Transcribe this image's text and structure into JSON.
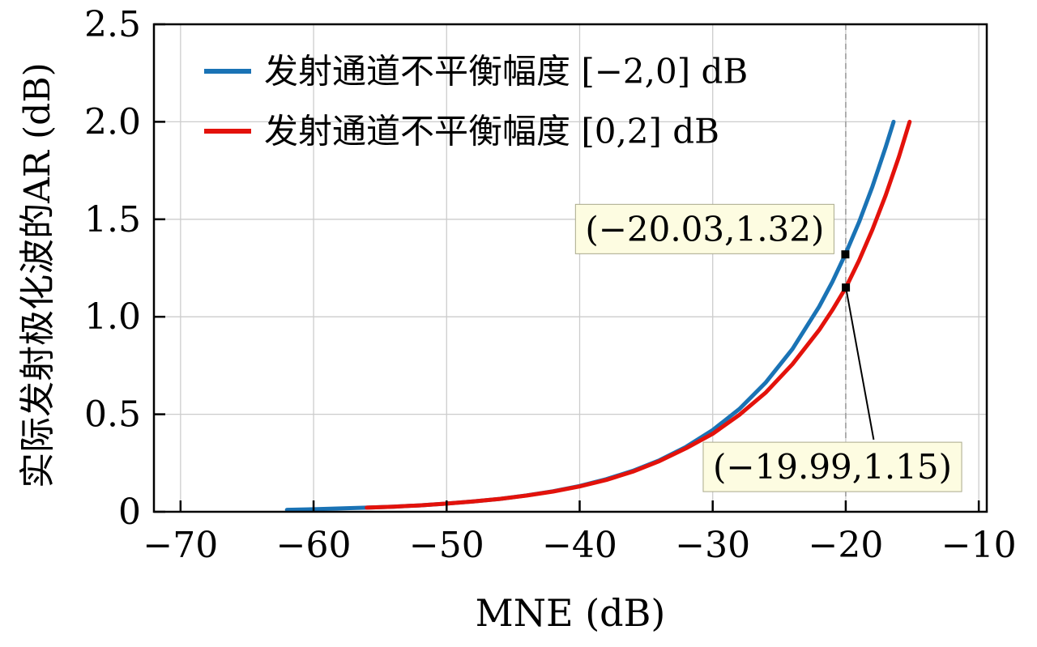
{
  "chart_data": {
    "type": "line",
    "title": "",
    "xlabel": "MNE (dB)",
    "ylabel": "实际发射极化波的AR (dB)",
    "xlim": [
      -72,
      -9.4
    ],
    "ylim": [
      0,
      2.5
    ],
    "xticks": [
      -70,
      -60,
      -50,
      -40,
      -30,
      -20,
      -10
    ],
    "xticklabels": [
      "−70",
      "−60",
      "−50",
      "−40",
      "−30",
      "−20",
      "−10"
    ],
    "yticks": [
      0,
      0.5,
      1,
      1.5,
      2,
      2.5
    ],
    "yticklabels": [
      "0",
      "0.5",
      "1.0",
      "1.5",
      "2.0",
      "2.5"
    ],
    "grid": true,
    "grid_color": "#cccccc",
    "axis_color": "#000000",
    "legend_position": "top-left",
    "series": [
      {
        "name": "发射通道不平衡幅度 [−2,0] dB",
        "color": "#1a73b5",
        "x": [
          -62,
          -60,
          -58,
          -56,
          -54,
          -52,
          -50,
          -48,
          -46,
          -44,
          -42,
          -40,
          -38,
          -36,
          -34,
          -32,
          -30,
          -28,
          -26,
          -24,
          -22,
          -21,
          -20.03,
          -19,
          -18,
          -17,
          -16.4
        ],
        "y": [
          0.01,
          0.013,
          0.017,
          0.021,
          0.026,
          0.033,
          0.042,
          0.053,
          0.066,
          0.084,
          0.105,
          0.132,
          0.167,
          0.21,
          0.264,
          0.333,
          0.419,
          0.527,
          0.664,
          0.835,
          1.052,
          1.18,
          1.32,
          1.486,
          1.667,
          1.87,
          2.0
        ]
      },
      {
        "name": "发射通道不平衡幅度 [0,2] dB",
        "color": "#e3120b",
        "x": [
          -56,
          -54,
          -52,
          -50,
          -48,
          -46,
          -44,
          -42,
          -40,
          -38,
          -36,
          -34,
          -32,
          -30,
          -28,
          -26,
          -24,
          -22,
          -21,
          -19.99,
          -19,
          -18,
          -17,
          -16,
          -15.2
        ],
        "y": [
          0.021,
          0.026,
          0.033,
          0.042,
          0.053,
          0.066,
          0.083,
          0.104,
          0.13,
          0.163,
          0.206,
          0.26,
          0.326,
          0.4,
          0.497,
          0.612,
          0.757,
          0.932,
          1.035,
          1.15,
          1.289,
          1.447,
          1.623,
          1.821,
          2.0
        ]
      }
    ],
    "vline": {
      "x": -20,
      "color": "#999999",
      "dash": "7 5"
    },
    "annotations": [
      {
        "text": "(−20.03,1.32)",
        "point": [
          -20.03,
          1.32
        ],
        "box_center": [
          -30.6,
          1.45
        ],
        "leader": false
      },
      {
        "text": "(−19.99,1.15)",
        "point": [
          -19.99,
          1.15
        ],
        "box_center": [
          -21.0,
          0.23
        ],
        "leader": true,
        "leader_end": [
          -17.9,
          0.37
        ]
      }
    ],
    "annotation_style": {
      "fill": "#fdfce1",
      "border": "#a9a98b"
    },
    "marker": {
      "shape": "square",
      "color": "#000000"
    }
  }
}
